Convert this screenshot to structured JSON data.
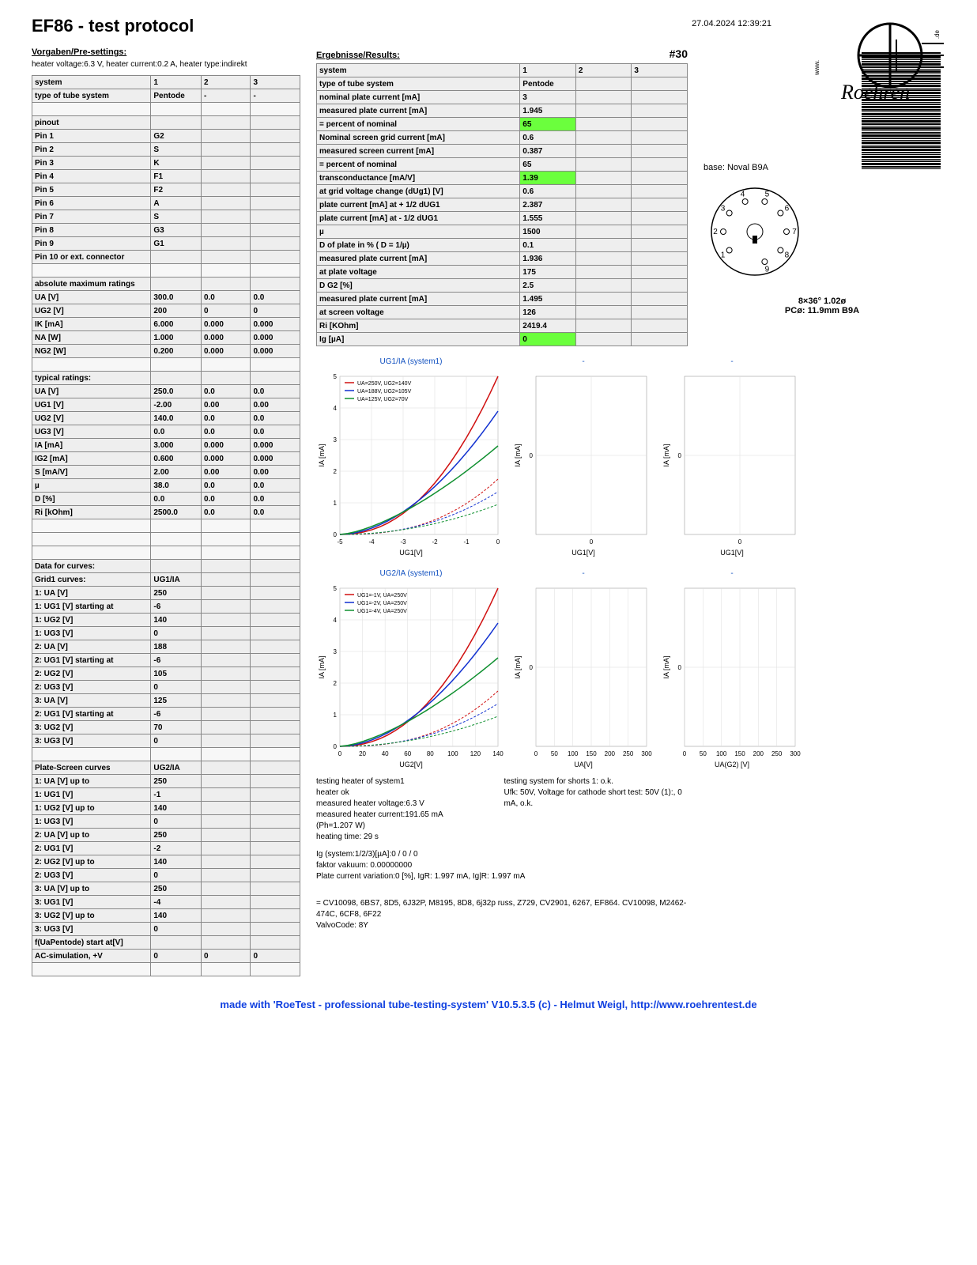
{
  "datetime": "27.04.2024  12:39:21",
  "title": "EF86  -  test protocol",
  "badge": "#30",
  "presettings": {
    "heading": "Vorgaben/Pre-settings:",
    "sub": "heater voltage:6.3 V, heater current:0.2 A, heater type:indirekt",
    "hdr": [
      "system",
      "1",
      "2",
      "3"
    ],
    "type": [
      "type of tube system",
      "Pentode",
      "-",
      "-"
    ],
    "pinout": "pinout",
    "pins": [
      [
        "Pin 1",
        "G2"
      ],
      [
        "Pin 2",
        "S"
      ],
      [
        "Pin 3",
        "K"
      ],
      [
        "Pin 4",
        "F1"
      ],
      [
        "Pin 5",
        "F2"
      ],
      [
        "Pin 6",
        "A"
      ],
      [
        "Pin 7",
        "S"
      ],
      [
        "Pin 8",
        "G3"
      ],
      [
        "Pin 9",
        "G1"
      ],
      [
        "Pin 10 or ext. connector",
        ""
      ]
    ],
    "abs_hdr": "absolute maximum ratings",
    "abs": [
      [
        "UA [V]",
        "300.0",
        "0.0",
        "0.0"
      ],
      [
        "UG2 [V]",
        "200",
        "0",
        "0"
      ],
      [
        "IK [mA]",
        "6.000",
        "0.000",
        "0.000"
      ],
      [
        "NA [W]",
        "1.000",
        "0.000",
        "0.000"
      ],
      [
        "NG2 [W]",
        "0.200",
        "0.000",
        "0.000"
      ]
    ],
    "typ_hdr": "typical ratings:",
    "typ": [
      [
        "UA [V]",
        "250.0",
        "0.0",
        "0.0"
      ],
      [
        "UG1 [V]",
        "-2.00",
        "0.00",
        "0.00"
      ],
      [
        "UG2 [V]",
        "140.0",
        "0.0",
        "0.0"
      ],
      [
        "UG3 [V]",
        "0.0",
        "0.0",
        "0.0"
      ],
      [
        "IA [mA]",
        "3.000",
        "0.000",
        "0.000"
      ],
      [
        "IG2 [mA]",
        "0.600",
        "0.000",
        "0.000"
      ],
      [
        "S [mA/V]",
        "2.00",
        "0.00",
        "0.00"
      ],
      [
        "µ",
        "38.0",
        "0.0",
        "0.0"
      ],
      [
        "D [%]",
        "0.0",
        "0.0",
        "0.0"
      ],
      [
        "Ri [kOhm]",
        "2500.0",
        "0.0",
        "0.0"
      ]
    ],
    "curves_hdr": "Data for curves:",
    "grid1": [
      [
        "Grid1 curves:",
        "UG1/IA"
      ],
      [
        "1: UA [V]",
        "250"
      ],
      [
        "1: UG1 [V] starting at",
        "-6"
      ],
      [
        "1: UG2 [V]",
        "140"
      ],
      [
        "1: UG3 [V]",
        "0"
      ],
      [
        "2: UA [V]",
        "188"
      ],
      [
        "2: UG1 [V] starting at",
        "-6"
      ],
      [
        "2: UG2 [V]",
        "105"
      ],
      [
        "2: UG3 [V]",
        "0"
      ],
      [
        "3: UA [V]",
        "125"
      ],
      [
        "2: UG1 [V] starting at",
        "-6"
      ],
      [
        "3: UG2 [V]",
        "70"
      ],
      [
        "3: UG3 [V]",
        "0"
      ]
    ],
    "plate": [
      [
        "Plate-Screen curves",
        "UG2/IA"
      ],
      [
        "1: UA [V] up to",
        "250"
      ],
      [
        "1: UG1 [V]",
        "-1"
      ],
      [
        "1: UG2 [V] up to",
        "140"
      ],
      [
        "1: UG3 [V]",
        "0"
      ],
      [
        "2: UA [V] up to",
        "250"
      ],
      [
        "2: UG1 [V]",
        "-2"
      ],
      [
        "2: UG2 [V] up to",
        "140"
      ],
      [
        "2: UG3 [V]",
        "0"
      ],
      [
        "3: UA [V] up to",
        "250"
      ],
      [
        "3: UG1 [V]",
        "-4"
      ],
      [
        "3: UG2 [V] up to",
        "140"
      ],
      [
        "3: UG3 [V]",
        "0"
      ],
      [
        "f(UaPentode) start at[V]",
        ""
      ],
      [
        "AC-simulation, +V",
        "0",
        "0",
        "0"
      ]
    ]
  },
  "results": {
    "heading": "Ergebnisse/Results:",
    "hdr": [
      "system",
      "1",
      "2",
      "3"
    ],
    "rows": [
      [
        "type of tube system",
        "Pentode",
        "",
        ""
      ],
      [
        "nominal plate current [mA]",
        "3",
        "",
        ""
      ],
      [
        "measured plate current [mA]",
        "1.945",
        "",
        ""
      ],
      [
        "= percent of nominal",
        "65",
        "",
        "",
        "hl"
      ],
      [
        "Nominal screen grid current [mA]",
        "0.6",
        "",
        ""
      ],
      [
        "measured screen current [mA]",
        "0.387",
        "",
        ""
      ],
      [
        "= percent of nominal",
        "65",
        "",
        ""
      ],
      [
        "transconductance [mA/V]",
        "1.39",
        "",
        "",
        "hl"
      ],
      [
        "at grid voltage change (dUg1) [V]",
        "0.6",
        "",
        ""
      ],
      [
        "plate current [mA] at + 1/2 dUG1",
        "2.387",
        "",
        ""
      ],
      [
        "plate current [mA] at - 1/2 dUG1",
        "1.555",
        "",
        ""
      ],
      [
        "µ",
        "1500",
        "",
        ""
      ],
      [
        "D of plate in % ( D = 1/µ)",
        "0.1",
        "",
        ""
      ],
      [
        "measured plate current [mA]",
        "1.936",
        "",
        ""
      ],
      [
        "at plate voltage",
        "175",
        "",
        ""
      ],
      [
        "D G2 [%]",
        "2.5",
        "",
        ""
      ],
      [
        "measured plate current [mA]",
        "1.495",
        "",
        ""
      ],
      [
        "at screen voltage",
        "126",
        "",
        ""
      ],
      [
        "Ri [KOhm]",
        "2419.4",
        "",
        ""
      ],
      [
        "Ig [µA]",
        "0",
        "",
        "",
        "hl"
      ]
    ]
  },
  "base": "base: Noval B9A",
  "pin_spec": "8×36°  1.02ø\nPCø: 11.9mm   B9A",
  "chart1": {
    "title": "UG1/IA (system1)",
    "legend": [
      "UA=250V, UG2=140V",
      "UA=188V, UG2=105V",
      "UA=125V, UG2=70V"
    ],
    "xlabel": "UG1[V]",
    "ylabel": "IA [mA]",
    "xticks": [
      "-5",
      "-4",
      "-3",
      "-2",
      "-1",
      "0"
    ],
    "yticks": [
      "0",
      "1",
      "2",
      "3",
      "4",
      "5"
    ],
    "colors": [
      "#d01010",
      "#1030d0",
      "#109030"
    ]
  },
  "chart2": {
    "title": "-",
    "xlabel": "UG1[V]",
    "ylabel": "IA [mA]",
    "xtick": "0"
  },
  "chart3": {
    "title": "-",
    "xlabel": "UG1[V]",
    "ylabel": "IA [mA]",
    "xtick": "0"
  },
  "chart4": {
    "title": "UG2/IA (system1)",
    "legend": [
      "UG1=-1V, UA=250V",
      "UG1=-2V, UA=250V",
      "UG1=-4V, UA=250V"
    ],
    "xlabel": "UG2[V]",
    "ylabel": "IA [mA]",
    "xticks": [
      "0",
      "20",
      "40",
      "60",
      "80",
      "100",
      "120",
      "140"
    ],
    "yticks": [
      "0",
      "1",
      "2",
      "3",
      "4",
      "5"
    ],
    "colors": [
      "#d01010",
      "#1030d0",
      "#109030"
    ]
  },
  "chart5": {
    "title": "-",
    "xlabel": "UA[V]",
    "ylabel": "IA [mA]",
    "xticks": [
      "0",
      "50",
      "100",
      "150",
      "200",
      "250",
      "300"
    ]
  },
  "chart6": {
    "title": "-",
    "xlabel": "UA(G2) [V]",
    "ylabel": "IA [mA]",
    "xticks": [
      "0",
      "50",
      "100",
      "150",
      "200",
      "250",
      "300"
    ]
  },
  "notes_left": "testing heater of system1\nheater ok\nmeasured heater voltage:6.3 V\nmeasured heater current:191.65 mA (Ph=1.207 W)\nheating time: 29 s",
  "notes_right": "testing system for shorts 1: o.k.\nUfk: 50V, Voltage for cathode short test: 50V (1):, 0 mA, o.k.",
  "notes_bottom": "Ig (system:1/2/3)[µA]:0 / 0 / 0\nfaktor vakuum: 0.00000000\nPlate current variation:0 [%], IgR: 1.997 mA, Ig|R: 1.997 mA",
  "equiv": "= CV10098,  6BS7,  8D5,  6J32P,  M8195,  8D8,  6j32p russ,  Z729,  CV2901,  6267,  EF864. CV10098, M2462-474C, 6CF8, 6F22\n ValvoCode: 8Y",
  "footer": "made with 'RoeTest - professional tube-testing-system' V10.5.3.5 (c) - Helmut Weigl, http://www.roehrentest.de"
}
